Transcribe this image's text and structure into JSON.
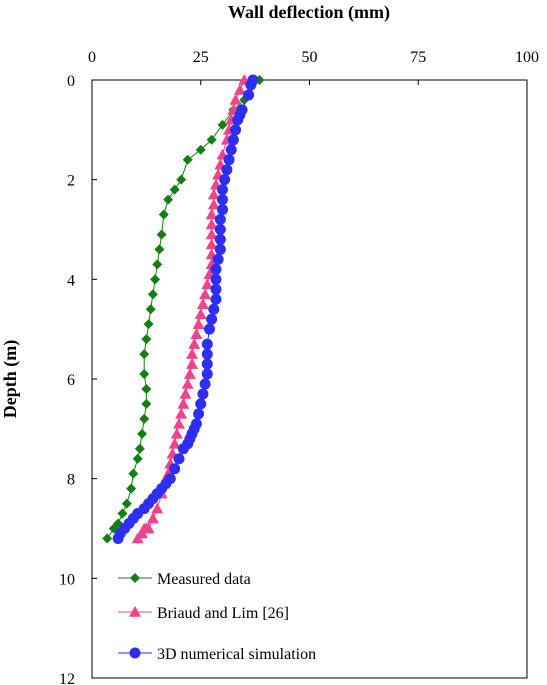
{
  "chart_data": {
    "type": "scatter",
    "title": "",
    "xlabel": "Wall deflection (mm)",
    "ylabel": "Depth (m)",
    "xlim": [
      0,
      100
    ],
    "ylim": [
      0,
      12
    ],
    "x_axis_position": "top",
    "y_axis_inverted": true,
    "xticks": [
      "0",
      "25",
      "50",
      "75",
      "100"
    ],
    "yticks": [
      "0",
      "2",
      "4",
      "6",
      "8",
      "10",
      "12"
    ],
    "grid": false,
    "legend_position": "bottom-left",
    "series": [
      {
        "name": "Measured data",
        "color": "#118011",
        "marker": "diamond",
        "x": [
          38.5,
          35.0,
          32.5,
          30.0,
          27.5,
          25.0,
          22.0,
          20.5,
          19.0,
          17.5,
          16.5,
          16.0,
          15.5,
          15.0,
          14.5,
          14.0,
          13.5,
          13.0,
          12.5,
          12.0,
          12.0,
          12.5,
          12.5,
          12.0,
          11.5,
          11.0,
          10.5,
          9.5,
          9.0,
          8.0,
          7.0,
          6.0,
          5.0,
          3.5
        ],
        "y": [
          0.0,
          0.4,
          0.6,
          0.9,
          1.2,
          1.4,
          1.6,
          2.0,
          2.2,
          2.4,
          2.7,
          3.1,
          3.4,
          3.7,
          4.0,
          4.3,
          4.6,
          4.9,
          5.2,
          5.5,
          5.9,
          6.2,
          6.5,
          6.8,
          7.1,
          7.4,
          7.6,
          7.9,
          8.2,
          8.5,
          8.7,
          8.9,
          9.0,
          9.2
        ]
      },
      {
        "name": "Briaud and Lim [26]",
        "color": "#f0438c",
        "marker": "triangle",
        "x": [
          35.0,
          34.0,
          33.0,
          32.5,
          32.0,
          31.5,
          31.0,
          30.0,
          29.5,
          29.0,
          28.5,
          28.0,
          28.0,
          27.5,
          27.5,
          27.5,
          27.5,
          27.5,
          27.5,
          27.0,
          26.5,
          26.0,
          25.5,
          25.0,
          24.5,
          24.0,
          23.5,
          23.0,
          23.0,
          22.5,
          22.0,
          21.5,
          21.0,
          20.5,
          20.0,
          19.5,
          19.0,
          18.5,
          18.0,
          17.5,
          16.5,
          16.0,
          15.0,
          14.0,
          13.0,
          12.5,
          12.0,
          11.5,
          10.5
        ],
        "y": [
          0.0,
          0.2,
          0.4,
          0.6,
          0.8,
          1.0,
          1.2,
          1.5,
          1.7,
          1.9,
          2.1,
          2.3,
          2.5,
          2.7,
          2.9,
          3.1,
          3.3,
          3.5,
          3.7,
          3.9,
          4.1,
          4.3,
          4.5,
          4.7,
          4.9,
          5.1,
          5.3,
          5.5,
          5.7,
          5.9,
          6.1,
          6.3,
          6.5,
          6.7,
          6.9,
          7.1,
          7.3,
          7.5,
          7.7,
          7.9,
          8.1,
          8.3,
          8.6,
          8.8,
          9.0,
          9.0,
          9.0,
          9.1,
          9.2
        ]
      },
      {
        "name": "3D numerical simulation",
        "color": "#2e2ef0",
        "marker": "circle",
        "x": [
          37.0,
          36.5,
          36.0,
          34.5,
          34.0,
          33.5,
          33.0,
          32.5,
          32.0,
          31.5,
          31.0,
          30.5,
          30.0,
          30.0,
          30.0,
          29.5,
          29.5,
          29.5,
          29.5,
          29.0,
          28.5,
          28.5,
          28.5,
          28.5,
          28.0,
          27.5,
          27.0,
          26.5,
          26.5,
          26.5,
          26.5,
          26.0,
          25.5,
          25.0,
          24.5,
          24.0,
          23.5,
          23.0,
          22.5,
          22.0,
          21.0,
          20.0,
          19.0,
          18.0,
          17.0,
          16.0,
          15.0,
          14.0,
          13.0,
          12.0,
          10.5,
          9.5,
          8.5,
          7.5,
          6.5,
          6.0
        ],
        "y": [
          0.0,
          0.1,
          0.3,
          0.6,
          0.7,
          0.8,
          1.0,
          1.2,
          1.4,
          1.6,
          1.8,
          2.0,
          2.2,
          2.4,
          2.6,
          2.8,
          3.0,
          3.2,
          3.4,
          3.6,
          3.8,
          4.0,
          4.2,
          4.4,
          4.6,
          4.8,
          5.0,
          5.3,
          5.5,
          5.7,
          5.9,
          6.1,
          6.3,
          6.5,
          6.7,
          6.9,
          7.0,
          7.1,
          7.2,
          7.3,
          7.4,
          7.6,
          7.8,
          8.0,
          8.1,
          8.2,
          8.3,
          8.4,
          8.5,
          8.6,
          8.7,
          8.8,
          8.9,
          9.0,
          9.1,
          9.2
        ]
      }
    ]
  }
}
